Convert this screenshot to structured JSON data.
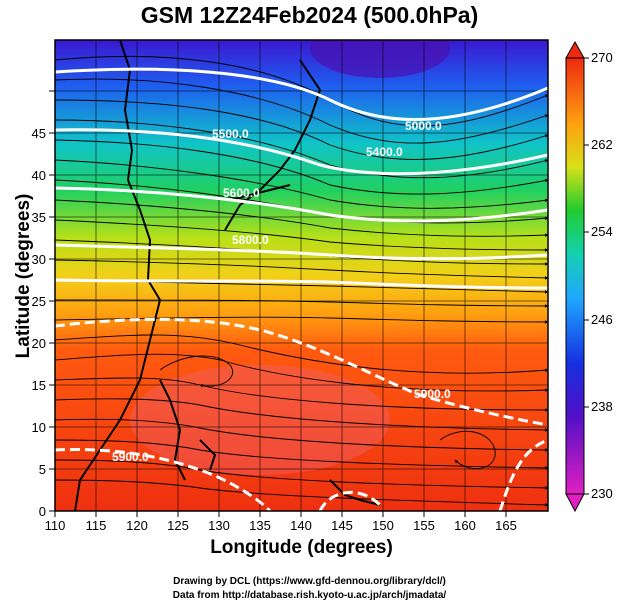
{
  "title": "GSM 12Z24Feb2024 (500.0hPa)",
  "xlabel": "Longitude (degrees)",
  "ylabel": "Latitude  (degrees)",
  "credits": [
    "Drawing by DCL (https://www.gfd-dennou.org/library/dcl/)",
    "Data from http://database.rish.kyoto-u.ac.jp/arch/jmadata/"
  ],
  "x_ticks": [
    "110",
    "115",
    "120",
    "125",
    "130",
    "135",
    "140",
    "145",
    "150",
    "155",
    "160",
    "165"
  ],
  "y_ticks": [
    "0",
    "5",
    "10",
    "15",
    "20",
    "25",
    "30",
    "35",
    "40",
    "45"
  ],
  "colorbar_ticks": [
    "230",
    "238",
    "246",
    "254",
    "262",
    "270"
  ],
  "contour_labels": [
    "5000.0",
    "5500.0",
    "5400.0",
    "5600.0",
    "5800.0",
    "5900.0",
    "5900.0"
  ],
  "colors": {
    "cold": "#e020c0",
    "cool": "#1a2ee0",
    "mid_cool": "#2fa0ff",
    "mid": "#15cc60",
    "warm": "#f5e020",
    "hot": "#ff7a10",
    "hottest": "#ee2a10"
  }
}
